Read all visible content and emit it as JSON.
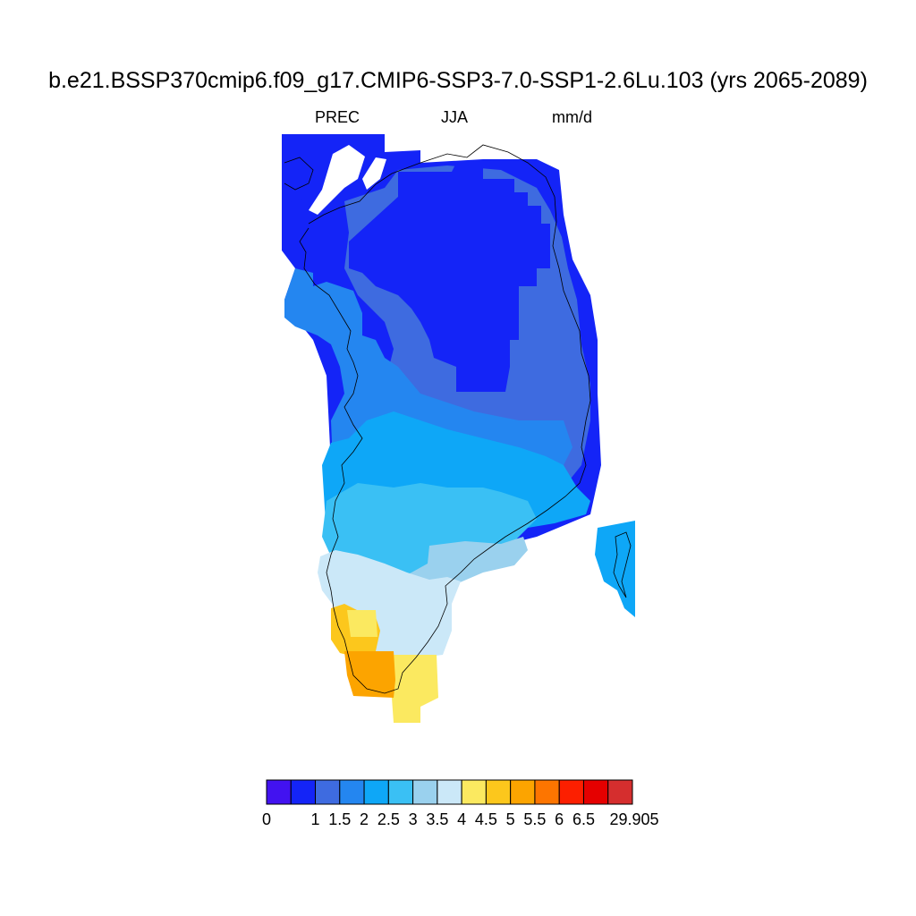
{
  "title": "b.e21.BSSP370cmip6.f09_g17.CMIP6-SSP3-7.0-SSP1-2.6Lu.103 (yrs 2065-2089)",
  "subtitle": {
    "variable": "PREC",
    "season": "JJA",
    "units": "mm/d"
  },
  "map_data": {
    "type": "gridded-map",
    "region": "Greenland",
    "coastline_outline": true,
    "levels": [
      "0",
      "1",
      "1.5",
      "2",
      "2.5",
      "3",
      "3.5",
      "4",
      "4.5",
      "5",
      "5.5",
      "6",
      "6.5",
      "29.905"
    ],
    "bin_colors": [
      "#4212f0",
      "#1424f7",
      "#3e6be0",
      "#2486f0",
      "#0ea7f7",
      "#3ac0f4",
      "#9ad1ee",
      "#cbe8f8",
      "#fbe960",
      "#fcc71c",
      "#fca400",
      "#fd7500",
      "#fc1f00",
      "#e50000",
      "#d52e2e"
    ],
    "zones": [
      {
        "name": "northern-interior",
        "bin": 1
      },
      {
        "name": "central-ice-sheet",
        "bin": 2
      },
      {
        "name": "southern-interior",
        "bin": 3
      },
      {
        "name": "south-central",
        "bin": 4
      },
      {
        "name": "southeast-coast",
        "bin": 5
      },
      {
        "name": "southwest-slope",
        "bin": 6
      },
      {
        "name": "southern-coast",
        "bin": 7
      },
      {
        "name": "southern-tip-yellow",
        "bin": 8
      },
      {
        "name": "southern-tip-gold",
        "bin": 9
      },
      {
        "name": "southern-tip-orange",
        "bin": 10
      }
    ]
  }
}
